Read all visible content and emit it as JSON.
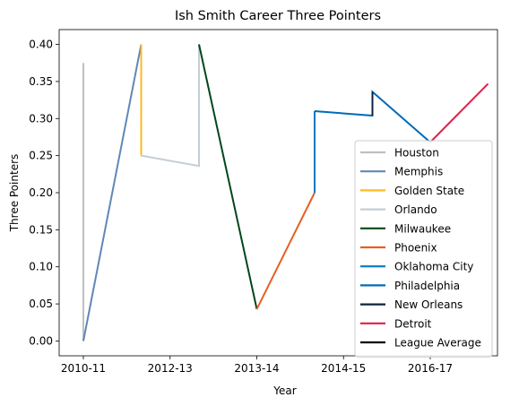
{
  "chart_data": {
    "type": "line",
    "title": "Ish Smith Career Three Pointers",
    "xlabel": "Year",
    "ylabel": "Three Pointers",
    "x_ticks": [
      "2010-11",
      "2012-13",
      "2013-14",
      "2014-15",
      "2016-17"
    ],
    "y_ticks": [
      "0.00",
      "0.05",
      "0.10",
      "0.15",
      "0.20",
      "0.25",
      "0.30",
      "0.35",
      "0.40"
    ],
    "ylim": [
      -0.02,
      0.42
    ],
    "grid": false,
    "legend_position": "lower right",
    "series": [
      {
        "name": "Houston",
        "color": "#bfbfbf",
        "points": [
          [
            0,
            0.375
          ],
          [
            0,
            0.0
          ]
        ]
      },
      {
        "name": "Memphis",
        "color": "#6188b6",
        "points": [
          [
            0,
            0.0
          ],
          [
            1,
            0.4
          ]
        ]
      },
      {
        "name": "Golden State",
        "color": "#fdb927",
        "points": [
          [
            1,
            0.4
          ],
          [
            1,
            0.25
          ]
        ]
      },
      {
        "name": "Orlando",
        "color": "#c4ced4",
        "points": [
          [
            1,
            0.25
          ],
          [
            2,
            0.236
          ],
          [
            2,
            0.4
          ]
        ]
      },
      {
        "name": "Milwaukee",
        "color": "#00471b",
        "points": [
          [
            2,
            0.4
          ],
          [
            3,
            0.043
          ]
        ]
      },
      {
        "name": "Phoenix",
        "color": "#e56020",
        "points": [
          [
            3,
            0.043
          ],
          [
            4,
            0.2
          ]
        ]
      },
      {
        "name": "Oklahoma City",
        "color": "#007ac1",
        "points": [
          [
            4,
            0.2
          ],
          [
            4,
            0.31
          ]
        ]
      },
      {
        "name": "Philadelphia",
        "color": "#006bb6",
        "points": [
          [
            4,
            0.31
          ],
          [
            5,
            0.304
          ],
          [
            5,
            0.336
          ],
          [
            6,
            0.268
          ]
        ]
      },
      {
        "name": "New Orleans",
        "color": "#0c2340",
        "points": [
          [
            5,
            0.304
          ],
          [
            5,
            0.336
          ]
        ]
      },
      {
        "name": "Detroit",
        "color": "#e01e48",
        "points": [
          [
            6,
            0.268
          ],
          [
            7,
            0.347
          ]
        ]
      },
      {
        "name": "League Average",
        "color": "#000000",
        "points": []
      }
    ]
  }
}
